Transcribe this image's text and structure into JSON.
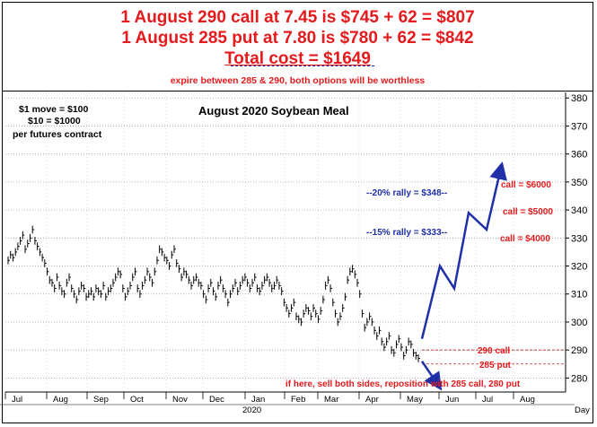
{
  "header": {
    "line1": "1 August 290 call at 7.45 is $745 + 62 = $807",
    "line2": "1 August 285 put at 7.80 is $780 + 62 = $842",
    "total": "Total cost = $1649",
    "note": "expire between 285 & 290, both options will be worthless"
  },
  "chart_data": {
    "type": "bar",
    "title": "August 2020 Soybean Meal",
    "xlabel": "",
    "ylabel": "",
    "x_axis_end_label": "Day",
    "year_label": "2020",
    "ylim": [
      275,
      382
    ],
    "yticks": [
      280,
      290,
      300,
      310,
      320,
      330,
      340,
      350,
      360,
      370,
      380
    ],
    "months": [
      "Jul",
      "Aug",
      "Sep",
      "Oct",
      "Nov",
      "Dec",
      "Jan",
      "Feb",
      "Mar",
      "Apr",
      "May",
      "Jun",
      "Jul",
      "Aug"
    ],
    "grid": true,
    "series": [
      {
        "values": [
          322,
          324,
          323,
          325,
          327,
          329,
          331,
          326,
          328,
          330,
          333,
          329,
          327,
          325,
          323,
          321,
          318,
          315,
          314,
          312,
          316,
          313,
          311,
          310,
          314,
          316,
          312,
          310,
          308,
          311,
          313,
          312,
          309,
          310,
          311,
          309,
          312,
          311,
          310,
          313,
          309,
          311,
          312,
          314,
          316,
          318,
          317,
          312,
          309,
          311,
          313,
          316,
          318,
          312,
          310,
          313,
          315,
          318,
          316,
          314,
          318,
          322,
          326,
          325,
          323,
          322,
          320,
          324,
          326,
          321,
          319,
          316,
          318,
          317,
          315,
          313,
          315,
          316,
          314,
          313,
          310,
          308,
          312,
          314,
          311,
          309,
          313,
          315,
          312,
          310,
          307,
          310,
          312,
          314,
          311,
          313,
          315,
          316,
          314,
          312,
          314,
          316,
          312,
          311,
          313,
          315,
          316,
          314,
          312,
          313,
          315,
          313,
          311,
          307,
          305,
          303,
          305,
          307,
          302,
          301,
          300,
          303,
          305,
          304,
          302,
          305,
          303,
          301,
          304,
          308,
          313,
          315,
          312,
          307,
          303,
          300,
          302,
          305,
          309,
          315,
          318,
          319,
          317,
          314,
          310,
          303,
          298,
          300,
          302,
          300,
          297,
          295,
          297,
          293,
          291,
          293,
          295,
          290,
          289,
          292,
          294,
          291,
          288,
          290,
          293,
          292,
          289,
          288,
          287
        ]
      }
    ],
    "annotations": {
      "contract_note": [
        "$1 move = $100",
        "$10 = $1000",
        "per futures contract"
      ],
      "rally_20": "--20% rally = $348--",
      "rally_15": "--15% rally = $333--",
      "call_values": [
        "call = $6000",
        "call = $5000",
        "call = $4000"
      ],
      "call_290": "290 call",
      "put_285": "285 put",
      "footer_note": "if here, sell both sides, reposition with 285 call, 280 put"
    },
    "colors": {
      "bars": "#000000",
      "projection": "#1f2fa8",
      "text_red": "#e41a1c",
      "text_blue": "#1f2fa8",
      "level_line": "#c0282a"
    }
  }
}
